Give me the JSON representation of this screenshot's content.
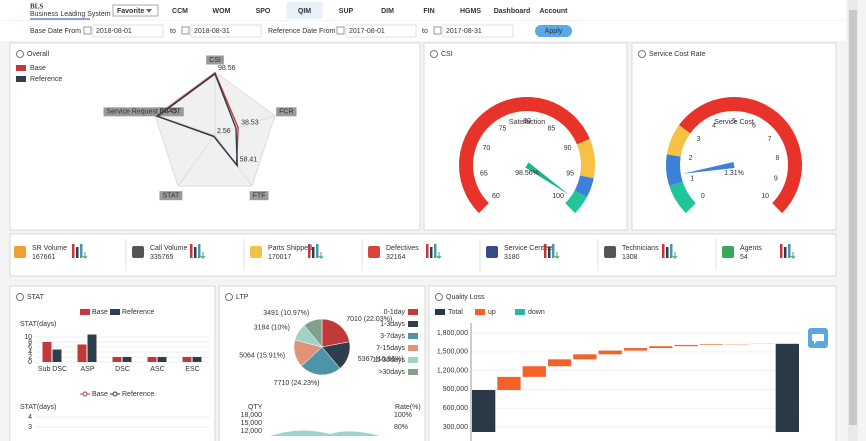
{
  "nav": {
    "logo": "BLS",
    "logo_sub": "Business Leading System",
    "favorite": "Favorite",
    "tabs": [
      "CCM",
      "WOM",
      "SPO",
      "QIM",
      "SUP",
      "DIM",
      "FIN",
      "HGMS",
      "Dashboard",
      "Account"
    ],
    "active_tab": 3
  },
  "filters": {
    "base_label": "Base Date From",
    "base_from": "2018-08-01",
    "to_1": "to",
    "base_to": "2018-08-31",
    "ref_label": "Reference Date From",
    "ref_from": "2017-08-01",
    "to_2": "to",
    "ref_to": "2017-08-31",
    "apply": "Apply"
  },
  "overall": {
    "type": "radar",
    "title": "Overall",
    "axes": [
      "CSI",
      "FCR",
      "FTF",
      "STAT",
      "Service Request DIFOT"
    ],
    "rlim": [
      0,
      100
    ],
    "rticks": [
      20,
      40,
      60,
      80,
      100
    ],
    "series": [
      {
        "name": "Base",
        "color": "#c0393b",
        "values": [
          98.56,
          38.53,
          58.41,
          2.56,
          97.45
        ],
        "show_labels": true
      },
      {
        "name": "Reference",
        "color": "#2f3e4c",
        "values": [
          97,
          35,
          60,
          3,
          96
        ],
        "show_labels": false
      }
    ]
  },
  "csi": {
    "type": "gauge",
    "title": "CSI",
    "label": "Satisfaction",
    "lim": [
      60,
      100
    ],
    "ticks": [
      60,
      65,
      70,
      75,
      80,
      85,
      90,
      95,
      100
    ],
    "value": 98.56,
    "value_label": "98.56%",
    "value_color": "#1db58f",
    "bands": [
      {
        "to": 90,
        "color": "#e8332a"
      },
      {
        "to": 95,
        "color": "#f6c244"
      },
      {
        "to": 97.5,
        "color": "#3d7fd9"
      },
      {
        "to": 100,
        "color": "#21c59b"
      }
    ]
  },
  "cost": {
    "type": "gauge",
    "title": "Service Cost Rate",
    "label": "Service Cost",
    "lim": [
      0,
      10
    ],
    "ticks": [
      0,
      1,
      2,
      3,
      4,
      5,
      6,
      7,
      8,
      9,
      10
    ],
    "value": 1.31,
    "value_label": "1.31%",
    "value_color": "#3d7fd9",
    "bands": [
      {
        "to": 1,
        "color": "#21c59b"
      },
      {
        "to": 2,
        "color": "#3d7fd9"
      },
      {
        "to": 3,
        "color": "#f6c244"
      },
      {
        "to": 10,
        "color": "#e8332a"
      }
    ]
  },
  "kpis": [
    {
      "label": "SR Volume",
      "value": 167661,
      "color": "#f0a030"
    },
    {
      "label": "Call Volume",
      "value": 335765,
      "color": "#555"
    },
    {
      "label": "Parts Shipped",
      "value": 170017,
      "color": "#f3c24a"
    },
    {
      "label": "Defectives",
      "value": 32164,
      "color": "#d9453b"
    },
    {
      "label": "Service Centers",
      "value": 3180,
      "color": "#3a4b8c"
    },
    {
      "label": "Technicians",
      "value": 1308,
      "color": "#555"
    },
    {
      "label": "Agents",
      "value": 54,
      "color": "#3aa85a"
    }
  ],
  "stat": {
    "type": "bar",
    "title": "STAT",
    "ylabel": "STAT(days)",
    "categories": [
      "Sub DSC",
      "ASP",
      "DSC",
      "ASC",
      "ESC"
    ],
    "ylim": [
      0,
      12
    ],
    "yticks": [
      0,
      2,
      4,
      6,
      8,
      10
    ],
    "series": [
      {
        "name": "Base",
        "color": "#c0393b",
        "values": [
          8,
          7,
          2,
          2,
          2
        ]
      },
      {
        "name": "Reference",
        "color": "#2f3e4c",
        "values": [
          5,
          11,
          2,
          2,
          2
        ]
      }
    ]
  },
  "stat_trend": {
    "type": "line",
    "ylabel": "STAT(days)",
    "ylim": [
      3,
      4
    ],
    "yticks": [
      3,
      4
    ],
    "series": [
      {
        "name": "Base",
        "color": "#c0393b"
      },
      {
        "name": "Reference",
        "color": "#2f3e4c"
      }
    ]
  },
  "ltp": {
    "type": "pie",
    "title": "LTP",
    "categories": [
      "0-1day",
      "1-3days",
      "3-7days",
      "7-15days",
      "15-30days",
      ">30days"
    ],
    "values": [
      7010,
      5367,
      7710,
      5064,
      3184,
      3491
    ],
    "value_labels": [
      "7010 (22.03%)",
      "5367 (16.86%)",
      "7710 (24.23%)",
      "5064 (15.91%)",
      "3184 (10%)",
      "3491 (10.97%)"
    ],
    "colors": [
      "#c0393b",
      "#2f3e4c",
      "#4e94a8",
      "#e0937a",
      "#9fd3c7",
      "#7fa08a"
    ],
    "qty_label": "QTY",
    "qty_lim": [
      12000,
      18000
    ],
    "qty_ticks": [
      {
        "value": 18000,
        "label": "18,000"
      },
      {
        "value": 15000,
        "label": "15,000"
      },
      {
        "value": 12000,
        "label": "12,000"
      }
    ],
    "rate_label": "Rate(%)",
    "rate_lim": [
      80,
      100
    ],
    "rate_ticks": [
      {
        "value": 100,
        "label": "100%"
      },
      {
        "value": 80,
        "label": "80%"
      }
    ]
  },
  "quality_loss": {
    "type": "waterfall",
    "title": "Quality Loss",
    "legend": [
      {
        "name": "Total",
        "color": "#2b3845"
      },
      {
        "name": "up",
        "color": "#f4622a"
      },
      {
        "name": "down",
        "color": "#2bb3b1"
      }
    ],
    "start_total": 890000,
    "ups": [
      210000,
      170000,
      110000,
      80000,
      60000,
      40000,
      30000,
      20000,
      10000,
      5000,
      3000
    ],
    "end_total": 1628000,
    "ylim": [
      220000,
      1960000
    ],
    "yticks": [
      {
        "value": 300000,
        "label": "300,000"
      },
      {
        "value": 600000,
        "label": "600,000"
      },
      {
        "value": 900000,
        "label": "900,000"
      },
      {
        "value": 1200000,
        "label": "1,200,000"
      },
      {
        "value": 1500000,
        "label": "1,500,000"
      },
      {
        "value": 1800000,
        "label": "1,800,000"
      }
    ]
  }
}
